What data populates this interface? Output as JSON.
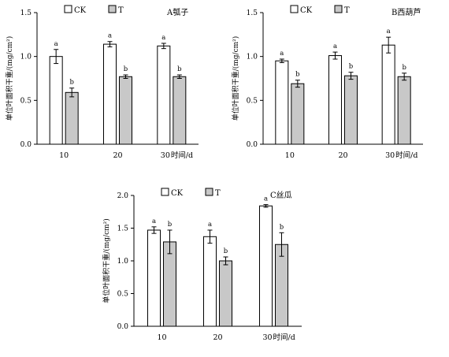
{
  "chart_data": [
    {
      "type": "bar",
      "panel_label": "A瓠子",
      "xlabel": "时间/d",
      "ylabel": "单位叶面积干重/(mg/cm²)",
      "categories": [
        "10",
        "20",
        "30"
      ],
      "ylim": [
        0.0,
        1.5
      ],
      "yticks": [
        "0.0",
        "0.5",
        "1.0",
        "1.5"
      ],
      "legend_position": "top-left",
      "series": [
        {
          "name": "CK",
          "color": "#ffffff",
          "values": [
            1.0,
            1.14,
            1.12
          ],
          "errors": [
            0.08,
            0.03,
            0.03
          ],
          "letters": [
            "a",
            "a",
            "a"
          ]
        },
        {
          "name": "T",
          "color": "#c8c8c8",
          "values": [
            0.59,
            0.77,
            0.77
          ],
          "errors": [
            0.05,
            0.02,
            0.02
          ],
          "letters": [
            "b",
            "b",
            "b"
          ]
        }
      ]
    },
    {
      "type": "bar",
      "panel_label": "B西葫芦",
      "xlabel": "时间/d",
      "ylabel": "单位叶面积干重/(mg/cm²)",
      "categories": [
        "10",
        "20",
        "30"
      ],
      "ylim": [
        0.0,
        1.5
      ],
      "yticks": [
        "0.0",
        "0.5",
        "1.0",
        "1.5"
      ],
      "legend_position": "top-left",
      "series": [
        {
          "name": "CK",
          "color": "#ffffff",
          "values": [
            0.95,
            1.01,
            1.13
          ],
          "errors": [
            0.02,
            0.04,
            0.09
          ],
          "letters": [
            "a",
            "a",
            "a"
          ]
        },
        {
          "name": "T",
          "color": "#c8c8c8",
          "values": [
            0.69,
            0.78,
            0.77
          ],
          "errors": [
            0.04,
            0.04,
            0.04
          ],
          "letters": [
            "b",
            "b",
            "b"
          ]
        }
      ]
    },
    {
      "type": "bar",
      "panel_label": "C丝瓜",
      "xlabel": "时间/d",
      "ylabel": "单位叶面积干重/(mg/cm²)",
      "categories": [
        "10",
        "20",
        "30"
      ],
      "ylim": [
        0.0,
        2.0
      ],
      "yticks": [
        "0.0",
        "0.5",
        "1.0",
        "1.5",
        "2.0"
      ],
      "legend_position": "top-left",
      "series": [
        {
          "name": "CK",
          "color": "#ffffff",
          "values": [
            1.47,
            1.37,
            1.84
          ],
          "errors": [
            0.05,
            0.1,
            0.02
          ],
          "letters": [
            "a",
            "a",
            "a"
          ]
        },
        {
          "name": "T",
          "color": "#c8c8c8",
          "values": [
            1.29,
            1.0,
            1.25
          ],
          "errors": [
            0.18,
            0.06,
            0.18
          ],
          "letters": [
            "b",
            "b",
            "b"
          ]
        }
      ]
    }
  ]
}
